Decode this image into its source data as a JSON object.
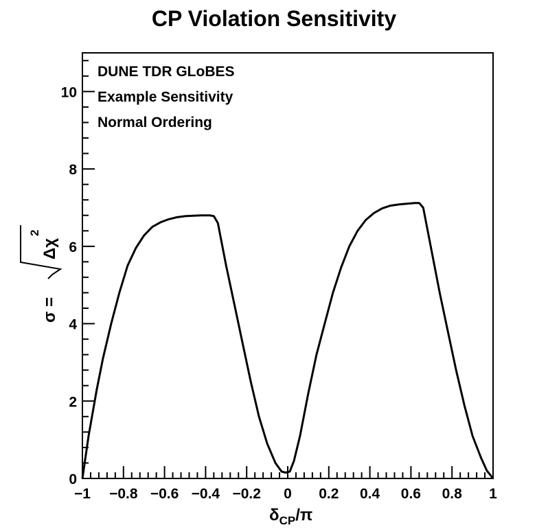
{
  "chart_data": {
    "type": "line",
    "title": "CP Violation Sensitivity",
    "xlabel": {
      "main": "δ",
      "sub": "CP",
      "suffix": "/π"
    },
    "ylabel": {
      "prefix": "σ = ",
      "radicand": "Δχ",
      "power": "2"
    },
    "xlim": [
      -1,
      1
    ],
    "ylim": [
      0,
      11
    ],
    "x_major_ticks": [
      -1,
      -0.8,
      -0.6,
      -0.4,
      -0.2,
      0,
      0.2,
      0.4,
      0.6,
      0.8,
      1
    ],
    "x_tick_labels": [
      "−1",
      "−0.8",
      "−0.6",
      "−0.4",
      "−0.2",
      "0",
      "0.2",
      "0.4",
      "0.6",
      "0.8",
      "1"
    ],
    "y_major_ticks": [
      0,
      2,
      4,
      6,
      8,
      10
    ],
    "y_tick_labels": [
      "0",
      "2",
      "4",
      "6",
      "8",
      "10"
    ],
    "annotations": [
      "DUNE TDR GLoBES",
      "Example Sensitivity",
      "Normal Ordering"
    ],
    "grid": false,
    "series": [
      {
        "color": "#000000",
        "x": [
          -1.0,
          -0.97,
          -0.93,
          -0.9,
          -0.86,
          -0.82,
          -0.78,
          -0.74,
          -0.7,
          -0.66,
          -0.62,
          -0.58,
          -0.54,
          -0.5,
          -0.46,
          -0.42,
          -0.38,
          -0.36,
          -0.34,
          -0.3,
          -0.26,
          -0.22,
          -0.18,
          -0.14,
          -0.1,
          -0.06,
          -0.03,
          -0.01,
          0.01,
          0.03,
          0.06,
          0.1,
          0.14,
          0.18,
          0.22,
          0.26,
          0.3,
          0.34,
          0.38,
          0.42,
          0.46,
          0.5,
          0.54,
          0.58,
          0.62,
          0.64,
          0.66,
          0.7,
          0.74,
          0.78,
          0.82,
          0.86,
          0.9,
          0.94,
          0.97,
          1.0
        ],
        "y": [
          0.0,
          1.1,
          2.3,
          3.1,
          4.0,
          4.8,
          5.5,
          5.95,
          6.28,
          6.5,
          6.62,
          6.7,
          6.75,
          6.78,
          6.79,
          6.8,
          6.8,
          6.78,
          6.6,
          5.5,
          4.5,
          3.5,
          2.5,
          1.6,
          0.9,
          0.4,
          0.18,
          0.15,
          0.18,
          0.45,
          1.1,
          2.2,
          3.2,
          4.0,
          4.8,
          5.45,
          6.0,
          6.4,
          6.68,
          6.86,
          6.98,
          7.05,
          7.08,
          7.1,
          7.12,
          7.12,
          7.0,
          5.9,
          4.8,
          3.8,
          2.8,
          1.9,
          1.1,
          0.55,
          0.2,
          0.0
        ]
      }
    ]
  }
}
